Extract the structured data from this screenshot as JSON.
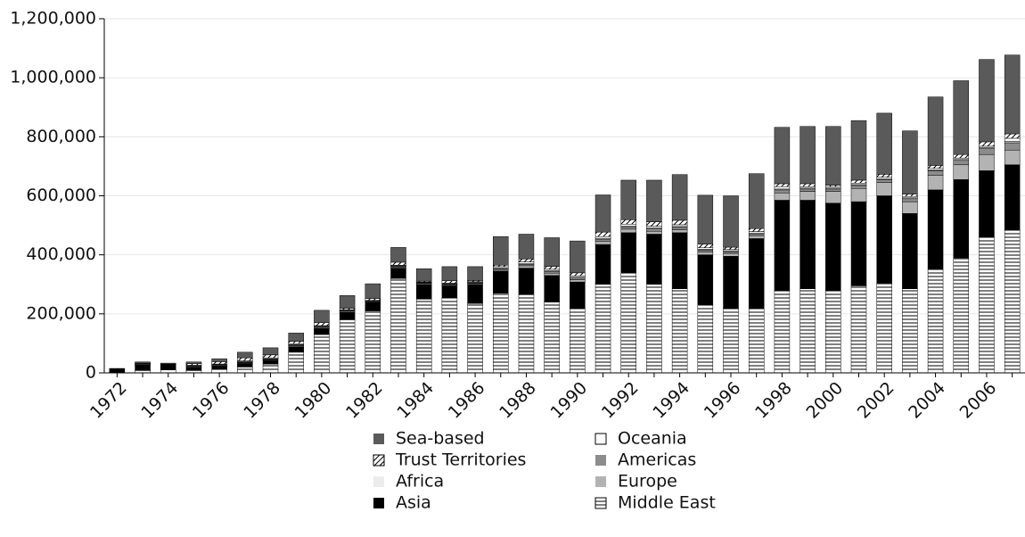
{
  "chart_data": {
    "type": "stacked-bar",
    "categories": [
      1972,
      null,
      1974,
      null,
      1976,
      null,
      1978,
      null,
      1980,
      null,
      1982,
      null,
      1984,
      null,
      1986,
      null,
      1988,
      null,
      1990,
      null,
      1992,
      null,
      1994,
      null,
      1996,
      null,
      1998,
      null,
      2000,
      null,
      2002,
      null,
      2004,
      null,
      2006,
      null
    ],
    "series": [
      {
        "name": "Middle East",
        "color": "#ffffff",
        "pattern": "horizontal-lines",
        "values": [
          2000,
          8000,
          10000,
          8000,
          12000,
          20000,
          30000,
          70000,
          130000,
          180000,
          210000,
          320000,
          250000,
          255000,
          235000,
          270000,
          265000,
          240000,
          218000,
          300000,
          340000,
          300000,
          285000,
          230000,
          220000,
          220000,
          280000,
          285000,
          280000,
          295000,
          305000,
          285000,
          350000,
          390000,
          460000,
          485000
        ]
      },
      {
        "name": "Asia",
        "color": "#000000",
        "values": [
          12000,
          18000,
          15000,
          10000,
          10000,
          12000,
          12000,
          18000,
          20000,
          25000,
          28000,
          35000,
          50000,
          40000,
          65000,
          75000,
          90000,
          90000,
          90000,
          135000,
          135000,
          170000,
          190000,
          170000,
          175000,
          235000,
          305000,
          300000,
          295000,
          285000,
          295000,
          255000,
          270000,
          265000,
          225000,
          220000
        ]
      },
      {
        "name": "Europe",
        "color": "#b3b3b3",
        "values": [
          0,
          1000,
          1000,
          2000,
          2000,
          2000,
          2000,
          3000,
          3000,
          3000,
          2000,
          3000,
          3000,
          3000,
          3000,
          5000,
          8000,
          8000,
          8000,
          10000,
          12000,
          10000,
          10000,
          10000,
          10000,
          10000,
          25000,
          30000,
          40000,
          45000,
          45000,
          40000,
          50000,
          50000,
          55000,
          50000
        ]
      },
      {
        "name": "Americas",
        "color": "#8c8c8c",
        "values": [
          0,
          1000,
          1000,
          2000,
          2000,
          2000,
          2000,
          3000,
          3000,
          2000,
          2000,
          3000,
          2000,
          2000,
          2000,
          3000,
          5000,
          5000,
          5000,
          8000,
          8000,
          8000,
          8000,
          6000,
          6000,
          6000,
          10000,
          8000,
          8000,
          10000,
          10000,
          10000,
          15000,
          15000,
          20000,
          25000
        ]
      },
      {
        "name": "Africa",
        "color": "#ececec",
        "values": [
          0,
          1000,
          1000,
          2000,
          2000,
          2000,
          2000,
          2000,
          2000,
          2000,
          2000,
          2000,
          1000,
          2000,
          2000,
          2000,
          3000,
          3000,
          3000,
          3000,
          3000,
          3000,
          3000,
          3000,
          3000,
          3000,
          3000,
          3000,
          3000,
          3000,
          3000,
          3000,
          3000,
          3000,
          3000,
          5000
        ]
      },
      {
        "name": "Oceania",
        "color": "#ffffff",
        "values": [
          0,
          2000,
          1000,
          2000,
          2000,
          3000,
          3000,
          3000,
          2000,
          2000,
          2000,
          2000,
          2000,
          2000,
          2000,
          5000,
          5000,
          5000,
          5000,
          6000,
          6000,
          6000,
          6000,
          5000,
          4000,
          5000,
          8000,
          5000,
          5000,
          5000,
          5000,
          5000,
          5000,
          5000,
          5000,
          10000
        ]
      },
      {
        "name": "Trust Territories",
        "color": "#ffffff",
        "pattern": "diagonal-lines",
        "values": [
          0,
          2000,
          1000,
          5000,
          8000,
          10000,
          10000,
          8000,
          10000,
          5000,
          6000,
          10000,
          3000,
          8000,
          4000,
          5000,
          10000,
          10000,
          10000,
          15000,
          15000,
          15000,
          15000,
          12000,
          8000,
          10000,
          10000,
          10000,
          5000,
          10000,
          10000,
          8000,
          10000,
          12000,
          15000,
          15000
        ]
      },
      {
        "name": "Sea-based",
        "color": "#5a5a5a",
        "values": [
          1000,
          4000,
          3000,
          6000,
          10000,
          19000,
          24000,
          28000,
          42000,
          43000,
          50000,
          50000,
          42000,
          48000,
          47000,
          97000,
          84000,
          97000,
          108000,
          126000,
          134000,
          141000,
          155000,
          166000,
          174000,
          186000,
          191000,
          194000,
          199000,
          202000,
          207000,
          214000,
          232000,
          250000,
          279000,
          267000
        ]
      }
    ],
    "ylim": [
      0,
      1200000
    ],
    "yticks": [
      0,
      {
        "value": 200000,
        "label": "200,000"
      },
      {
        "value": 400000,
        "label": "400,000"
      },
      {
        "value": 600000,
        "label": "600,000"
      },
      {
        "value": 800000,
        "label": "800,000"
      },
      {
        "value": 1000000,
        "label": "1,000,000"
      },
      {
        "value": 1200000,
        "label": "1,200,000"
      }
    ],
    "grid": true
  }
}
